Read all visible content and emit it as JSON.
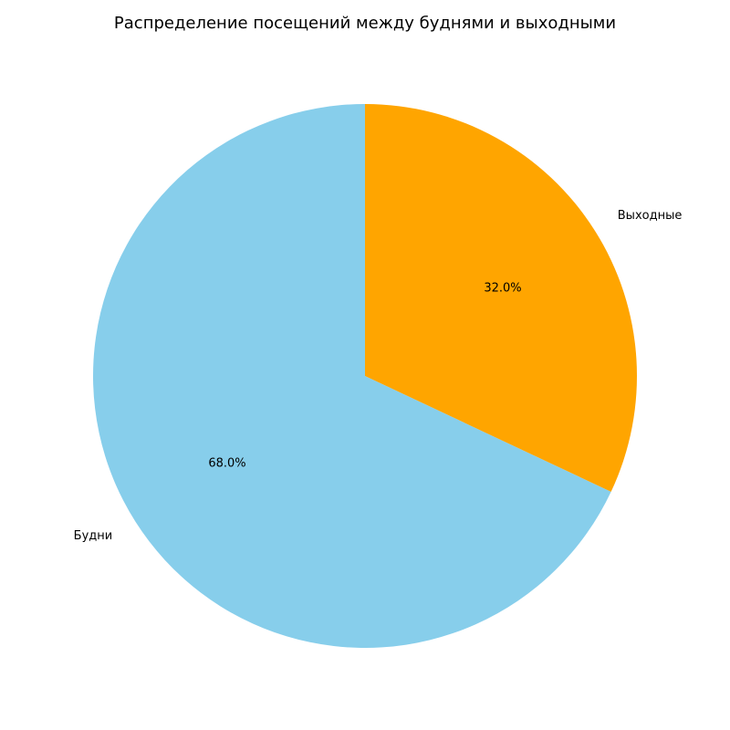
{
  "chart_data": {
    "type": "pie",
    "title": "Распределение посещений между буднями и выходными",
    "categories": [
      "Будни",
      "Выходные"
    ],
    "values": [
      68.0,
      32.0
    ],
    "percent_labels": [
      "68.0%",
      "32.0%"
    ],
    "colors": [
      "#87ceeb",
      "#ffa500"
    ],
    "start_angle_deg": 90,
    "direction": "counterclockwise",
    "legend": "none"
  }
}
